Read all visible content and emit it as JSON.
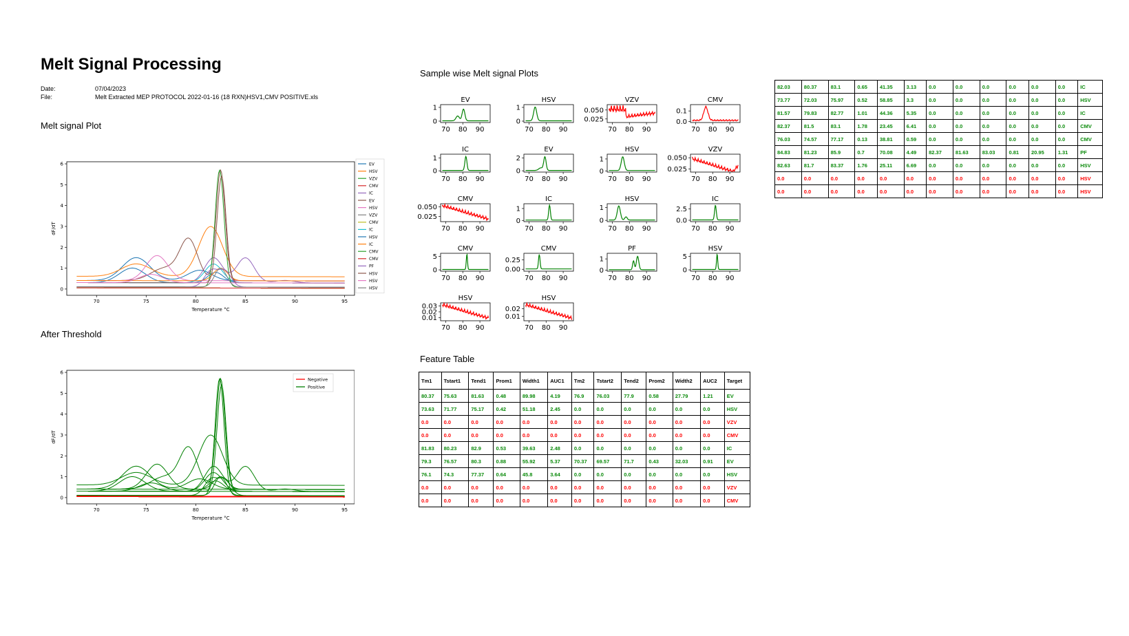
{
  "report": {
    "title": "Melt Signal Processing",
    "date_label": "Date:",
    "date_value": "07/04/2023",
    "file_label": "File:",
    "file_value": "Melt Extracted MEP PROTOCOL 2022-01-16 (18 RXN)HSV1,CMV POSITIVE.xls",
    "melt_plot_heading": "Melt signal Plot",
    "threshold_heading": "After Threshold",
    "sample_plots_heading": "Sample wise Melt signal Plots",
    "feature_table_heading": "Feature Table"
  },
  "colors": {
    "positive": "#008000",
    "negative": "#ff0000"
  },
  "chart_data": [
    {
      "id": "melt-plot",
      "type": "line",
      "xlabel": "Temperature °C",
      "ylabel": "dF/dT",
      "xlim": [
        67,
        96
      ],
      "ylim": [
        -0.3,
        6.1
      ],
      "xticks": [
        70,
        75,
        80,
        85,
        90,
        95
      ],
      "yticks": [
        0,
        1,
        2,
        3,
        4,
        5,
        6
      ],
      "legend_position": "outside-right",
      "series": [
        {
          "name": "EV",
          "color": "#1f77b4",
          "baseline": 0.4,
          "peaks": [
            [
              74,
              1.1,
              1.4
            ],
            [
              80.4,
              0.5,
              1.2
            ]
          ]
        },
        {
          "name": "HSV",
          "color": "#ff7f0e",
          "baseline": 0.6,
          "peaks": [
            [
              74,
              0.6,
              1.5
            ],
            [
              81.5,
              2.4,
              1.2
            ]
          ]
        },
        {
          "name": "VZV",
          "color": "#2ca02c",
          "baseline": 0.05,
          "peaks": []
        },
        {
          "name": "CMV",
          "color": "#d62728",
          "baseline": 0.05,
          "peaks": []
        },
        {
          "name": "IC",
          "color": "#9467bd",
          "baseline": 0.3,
          "peaks": [
            [
              81.8,
              1.2,
              0.9
            ],
            [
              85,
              1.2,
              0.9
            ],
            [
              89,
              0.12,
              1
            ]
          ]
        },
        {
          "name": "EV",
          "color": "#8c564b",
          "baseline": 0.4,
          "peaks": [
            [
              76.9,
              0.6,
              1.4
            ],
            [
              79.3,
              1.9,
              0.9
            ],
            [
              82.5,
              5.3,
              0.45
            ]
          ]
        },
        {
          "name": "HSV",
          "color": "#e377c2",
          "baseline": 0.4,
          "peaks": [
            [
              76.1,
              1.2,
              1.1
            ]
          ]
        },
        {
          "name": "VZV",
          "color": "#7f7f7f",
          "baseline": 0.05,
          "peaks": []
        },
        {
          "name": "CMV",
          "color": "#bcbd22",
          "baseline": 0.05,
          "peaks": []
        },
        {
          "name": "IC",
          "color": "#17becf",
          "baseline": 0.3,
          "peaks": [
            [
              81.8,
              0.9,
              0.9
            ]
          ]
        },
        {
          "name": "HSV",
          "color": "#1f77b4",
          "baseline": 0.3,
          "peaks": [
            [
              73.6,
              0.7,
              1.3
            ],
            [
              82,
              0.5,
              0.8
            ]
          ]
        },
        {
          "name": "IC",
          "color": "#ff7f0e",
          "baseline": 0.4,
          "peaks": [
            [
              82.5,
              0.6,
              0.7
            ]
          ]
        },
        {
          "name": "CMV",
          "color": "#2ca02c",
          "baseline": 0.1,
          "peaks": [
            [
              82.4,
              5.6,
              0.45
            ]
          ]
        },
        {
          "name": "CMV",
          "color": "#d62728",
          "baseline": 0.05,
          "peaks": []
        },
        {
          "name": "PF",
          "color": "#9467bd",
          "baseline": 0.1,
          "peaks": [
            [
              81.6,
              0.8,
              0.7
            ],
            [
              83,
              0.7,
              0.6
            ]
          ]
        },
        {
          "name": "HSV",
          "color": "#8c564b",
          "baseline": 0.3,
          "peaks": [
            [
              82.6,
              5.1,
              0.45
            ]
          ]
        },
        {
          "name": "HSV",
          "color": "#e377c2",
          "baseline": 0.3,
          "peaks": [
            [
              75.5,
              0.4,
              1.2
            ]
          ]
        },
        {
          "name": "HSV",
          "color": "#7f7f7f",
          "baseline": 0.1,
          "peaks": [
            [
              82.5,
              0.9,
              0.6
            ]
          ]
        }
      ]
    },
    {
      "id": "threshold-plot",
      "type": "line",
      "xlabel": "Temperature °C",
      "ylabel": "dF/dT",
      "xlim": [
        67,
        96
      ],
      "ylim": [
        -0.3,
        6.1
      ],
      "xticks": [
        70,
        75,
        80,
        85,
        90,
        95
      ],
      "yticks": [
        0,
        1,
        2,
        3,
        4,
        5,
        6
      ],
      "legend_position": "top-right",
      "legend": [
        {
          "name": "Negative",
          "color": "#ff0000"
        },
        {
          "name": "Positive",
          "color": "#008000"
        }
      ]
    },
    {
      "id": "sample-plots",
      "type": "line",
      "xticks": [
        70,
        80,
        90
      ],
      "xlim": [
        67,
        96
      ],
      "subplots": [
        {
          "title": "EV",
          "status": "positive",
          "yticks": [
            "0",
            "1"
          ],
          "ylim": [
            -0.1,
            1.2
          ]
        },
        {
          "title": "HSV",
          "status": "positive",
          "yticks": [
            "0",
            "1"
          ],
          "ylim": [
            -0.1,
            1.2
          ]
        },
        {
          "title": "VZV",
          "status": "negative",
          "yticks": [
            "0.025",
            "0.050"
          ],
          "ylim": [
            0.015,
            0.065
          ]
        },
        {
          "title": "CMV",
          "status": "negative",
          "yticks": [
            "0.0",
            "0.1"
          ],
          "ylim": [
            -0.01,
            0.16
          ]
        },
        {
          "title": "IC",
          "status": "positive",
          "yticks": [
            "0",
            "1"
          ],
          "ylim": [
            -0.1,
            1.3
          ]
        },
        {
          "title": "EV",
          "status": "positive",
          "yticks": [
            "0",
            "2"
          ],
          "ylim": [
            -0.2,
            2.6
          ]
        },
        {
          "title": "HSV",
          "status": "positive",
          "yticks": [
            "0",
            "1"
          ],
          "ylim": [
            -0.1,
            1.4
          ]
        },
        {
          "title": "VZV",
          "status": "negative",
          "yticks": [
            "0.025",
            "0.050"
          ],
          "ylim": [
            0.018,
            0.058
          ]
        },
        {
          "title": "CMV",
          "status": "negative",
          "yticks": [
            "0.025",
            "0.050"
          ],
          "ylim": [
            0.012,
            0.058
          ]
        },
        {
          "title": "IC",
          "status": "positive",
          "yticks": [
            "0",
            "1"
          ],
          "ylim": [
            -0.1,
            1.4
          ]
        },
        {
          "title": "HSV",
          "status": "positive",
          "yticks": [
            "0",
            "1"
          ],
          "ylim": [
            -0.1,
            1.3
          ]
        },
        {
          "title": "IC",
          "status": "positive",
          "yticks": [
            "0.0",
            "2.5"
          ],
          "ylim": [
            -0.3,
            3.6
          ]
        },
        {
          "title": "CMV",
          "status": "positive",
          "yticks": [
            "0",
            "5"
          ],
          "ylim": [
            -0.5,
            6.2
          ]
        },
        {
          "title": "CMV",
          "status": "positive",
          "yticks": [
            "0.00",
            "0.25"
          ],
          "ylim": [
            -0.05,
            0.42
          ]
        },
        {
          "title": "PF",
          "status": "positive",
          "yticks": [
            "0",
            "1"
          ],
          "ylim": [
            -0.1,
            1.5
          ]
        },
        {
          "title": "HSV",
          "status": "positive",
          "yticks": [
            "0",
            "5"
          ],
          "ylim": [
            -0.5,
            6.2
          ]
        },
        {
          "title": "HSV",
          "status": "negative",
          "yticks": [
            "0.01",
            "0.02",
            "0.03"
          ],
          "ylim": [
            0.005,
            0.035
          ]
        },
        {
          "title": "HSV",
          "status": "negative",
          "yticks": [
            "0.01",
            "0.02"
          ],
          "ylim": [
            0.004,
            0.028
          ]
        }
      ]
    }
  ],
  "feature_table": {
    "headers": [
      "Tm1",
      "Tstart1",
      "Tend1",
      "Prom1",
      "Width1",
      "AUC1",
      "Tm2",
      "Tstart2",
      "Tend2",
      "Prom2",
      "Width2",
      "AUC2",
      "Target"
    ],
    "rows": [
      {
        "status": "pos",
        "cells": [
          "80.37",
          "75.63",
          "81.63",
          "0.48",
          "89.98",
          "4.19",
          "76.9",
          "76.03",
          "77.9",
          "0.58",
          "27.79",
          "1.21",
          "EV"
        ]
      },
      {
        "status": "pos",
        "cells": [
          "73.63",
          "71.77",
          "75.17",
          "0.42",
          "51.18",
          "2.45",
          "0.0",
          "0.0",
          "0.0",
          "0.0",
          "0.0",
          "0.0",
          "HSV"
        ]
      },
      {
        "status": "neg",
        "cells": [
          "0.0",
          "0.0",
          "0.0",
          "0.0",
          "0.0",
          "0.0",
          "0.0",
          "0.0",
          "0.0",
          "0.0",
          "0.0",
          "0.0",
          "VZV"
        ]
      },
      {
        "status": "neg",
        "cells": [
          "0.0",
          "0.0",
          "0.0",
          "0.0",
          "0.0",
          "0.0",
          "0.0",
          "0.0",
          "0.0",
          "0.0",
          "0.0",
          "0.0",
          "CMV"
        ]
      },
      {
        "status": "pos",
        "cells": [
          "81.83",
          "80.23",
          "82.9",
          "0.53",
          "39.63",
          "2.48",
          "0.0",
          "0.0",
          "0.0",
          "0.0",
          "0.0",
          "0.0",
          "IC"
        ]
      },
      {
        "status": "pos",
        "cells": [
          "79.3",
          "76.57",
          "80.3",
          "0.88",
          "55.92",
          "5.37",
          "70.37",
          "69.57",
          "71.7",
          "0.43",
          "32.03",
          "0.91",
          "EV"
        ]
      },
      {
        "status": "pos",
        "cells": [
          "76.1",
          "74.3",
          "77.37",
          "0.64",
          "45.8",
          "3.64",
          "0.0",
          "0.0",
          "0.0",
          "0.0",
          "0.0",
          "0.0",
          "HSV"
        ]
      },
      {
        "status": "neg",
        "cells": [
          "0.0",
          "0.0",
          "0.0",
          "0.0",
          "0.0",
          "0.0",
          "0.0",
          "0.0",
          "0.0",
          "0.0",
          "0.0",
          "0.0",
          "VZV"
        ]
      },
      {
        "status": "neg",
        "cells": [
          "0.0",
          "0.0",
          "0.0",
          "0.0",
          "0.0",
          "0.0",
          "0.0",
          "0.0",
          "0.0",
          "0.0",
          "0.0",
          "0.0",
          "CMV"
        ]
      }
    ]
  },
  "feature_table_cont": {
    "rows": [
      {
        "status": "pos",
        "cells": [
          "82.03",
          "80.37",
          "83.1",
          "0.65",
          "41.35",
          "3.13",
          "0.0",
          "0.0",
          "0.0",
          "0.0",
          "0.0",
          "0.0",
          "IC"
        ]
      },
      {
        "status": "pos",
        "cells": [
          "73.77",
          "72.03",
          "75.97",
          "0.52",
          "58.85",
          "3.3",
          "0.0",
          "0.0",
          "0.0",
          "0.0",
          "0.0",
          "0.0",
          "HSV"
        ]
      },
      {
        "status": "pos",
        "cells": [
          "81.57",
          "79.83",
          "82.77",
          "1.01",
          "44.36",
          "5.35",
          "0.0",
          "0.0",
          "0.0",
          "0.0",
          "0.0",
          "0.0",
          "IC"
        ]
      },
      {
        "status": "pos",
        "cells": [
          "82.37",
          "81.5",
          "83.1",
          "1.78",
          "23.45",
          "6.41",
          "0.0",
          "0.0",
          "0.0",
          "0.0",
          "0.0",
          "0.0",
          "CMV"
        ]
      },
      {
        "status": "pos",
        "cells": [
          "76.03",
          "74.57",
          "77.17",
          "0.13",
          "38.81",
          "0.59",
          "0.0",
          "0.0",
          "0.0",
          "0.0",
          "0.0",
          "0.0",
          "CMV"
        ]
      },
      {
        "status": "pos",
        "cells": [
          "84.83",
          "81.23",
          "85.9",
          "0.7",
          "70.08",
          "4.49",
          "82.37",
          "81.63",
          "83.03",
          "0.81",
          "20.95",
          "1.31",
          "PF"
        ]
      },
      {
        "status": "pos",
        "cells": [
          "82.63",
          "81.7",
          "83.37",
          "1.76",
          "25.11",
          "6.69",
          "0.0",
          "0.0",
          "0.0",
          "0.0",
          "0.0",
          "0.0",
          "HSV"
        ]
      },
      {
        "status": "neg",
        "cells": [
          "0.0",
          "0.0",
          "0.0",
          "0.0",
          "0.0",
          "0.0",
          "0.0",
          "0.0",
          "0.0",
          "0.0",
          "0.0",
          "0.0",
          "HSV"
        ]
      },
      {
        "status": "neg",
        "cells": [
          "0.0",
          "0.0",
          "0.0",
          "0.0",
          "0.0",
          "0.0",
          "0.0",
          "0.0",
          "0.0",
          "0.0",
          "0.0",
          "0.0",
          "HSV"
        ]
      }
    ]
  }
}
